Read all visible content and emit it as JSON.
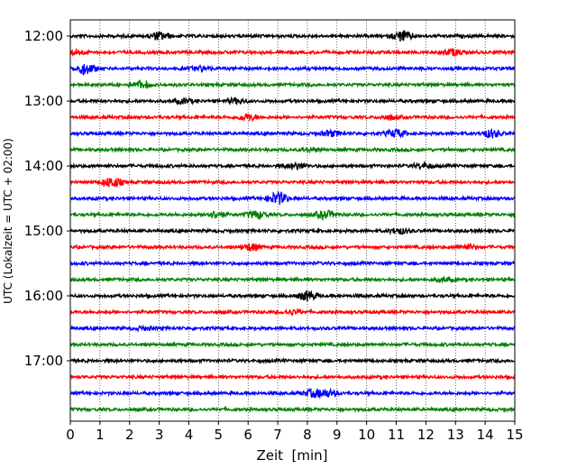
{
  "chart_data": {
    "type": "line",
    "title": "",
    "xlabel": "Zeit  [min]",
    "ylabel": "UTC (Lokalzeit = UTC + 02:00)",
    "xlim": [
      0,
      15
    ],
    "x_ticks": [
      "0",
      "1",
      "2",
      "3",
      "4",
      "5",
      "6",
      "7",
      "8",
      "9",
      "10",
      "11",
      "12",
      "13",
      "14",
      "15"
    ],
    "y_ticks": [
      "12:00",
      "13:00",
      "14:00",
      "15:00",
      "16:00",
      "17:00"
    ],
    "grid": "vertical dotted lines at each minute",
    "trace_interval_minutes": 15,
    "color_cycle": [
      "#000000",
      "#ff0000",
      "#0000ff",
      "#008000"
    ],
    "traces": [
      {
        "start": "12:00",
        "color": "#000000",
        "events": [
          [
            3.0,
            0.55
          ],
          [
            11.2,
            0.75
          ]
        ]
      },
      {
        "start": "12:15",
        "color": "#ff0000",
        "events": [
          [
            0.2,
            0.35
          ],
          [
            12.9,
            0.45
          ]
        ]
      },
      {
        "start": "12:30",
        "color": "#0000ff",
        "events": [
          [
            0.5,
            0.8
          ],
          [
            4.4,
            0.3
          ]
        ]
      },
      {
        "start": "12:45",
        "color": "#008000",
        "events": [
          [
            2.4,
            0.45
          ]
        ]
      },
      {
        "start": "13:00",
        "color": "#000000",
        "events": [
          [
            3.8,
            0.3
          ],
          [
            5.6,
            0.35
          ]
        ]
      },
      {
        "start": "13:15",
        "color": "#ff0000",
        "events": [
          [
            6.0,
            0.45
          ],
          [
            10.8,
            0.3
          ]
        ]
      },
      {
        "start": "13:30",
        "color": "#0000ff",
        "events": [
          [
            8.8,
            0.4
          ],
          [
            11.0,
            0.55
          ],
          [
            14.2,
            0.55
          ]
        ]
      },
      {
        "start": "13:45",
        "color": "#008000",
        "events": [
          [
            8.1,
            0.25
          ]
        ]
      },
      {
        "start": "14:00",
        "color": "#000000",
        "events": [
          [
            7.6,
            0.45
          ],
          [
            11.9,
            0.35
          ]
        ]
      },
      {
        "start": "14:15",
        "color": "#ff0000",
        "events": [
          [
            1.4,
            0.75
          ]
        ]
      },
      {
        "start": "14:30",
        "color": "#0000ff",
        "events": [
          [
            7.0,
            0.9
          ]
        ]
      },
      {
        "start": "14:45",
        "color": "#008000",
        "events": [
          [
            4.9,
            0.45
          ],
          [
            6.3,
            0.5
          ],
          [
            8.6,
            0.55
          ]
        ]
      },
      {
        "start": "15:00",
        "color": "#000000",
        "events": [
          [
            11.1,
            0.4
          ]
        ]
      },
      {
        "start": "15:15",
        "color": "#ff0000",
        "events": [
          [
            6.1,
            0.5
          ],
          [
            13.4,
            0.35
          ]
        ]
      },
      {
        "start": "15:30",
        "color": "#0000ff",
        "events": []
      },
      {
        "start": "15:45",
        "color": "#008000",
        "events": [
          [
            12.6,
            0.25
          ]
        ]
      },
      {
        "start": "16:00",
        "color": "#000000",
        "events": [
          [
            8.0,
            0.65
          ]
        ]
      },
      {
        "start": "16:15",
        "color": "#ff0000",
        "events": [
          [
            7.5,
            0.3
          ]
        ]
      },
      {
        "start": "16:30",
        "color": "#0000ff",
        "events": [
          [
            2.5,
            0.2
          ]
        ]
      },
      {
        "start": "16:45",
        "color": "#008000",
        "events": []
      },
      {
        "start": "17:00",
        "color": "#000000",
        "events": []
      },
      {
        "start": "17:15",
        "color": "#ff0000",
        "events": []
      },
      {
        "start": "17:30",
        "color": "#0000ff",
        "events": [
          [
            8.2,
            0.5
          ],
          [
            8.7,
            0.45
          ]
        ]
      },
      {
        "start": "17:45",
        "color": "#008000",
        "events": []
      }
    ]
  }
}
